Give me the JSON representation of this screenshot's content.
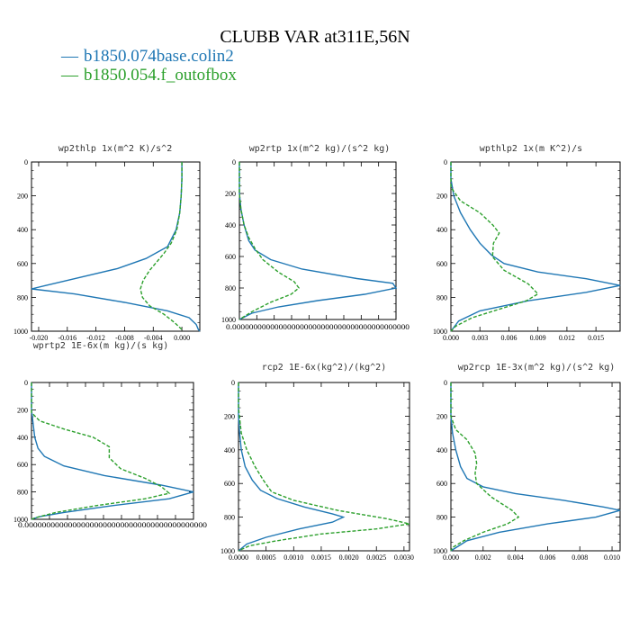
{
  "title": "CLUBB VAR at311E,56N",
  "legend": [
    {
      "label": "b1850.074base.colin2",
      "color": "#1f77b4",
      "dash": "solid"
    },
    {
      "label": "b1850.054.f_outofbox",
      "color": "#2ca02c",
      "dash": "dashed"
    }
  ],
  "chart_data": [
    {
      "type": "line",
      "title": "wp2thlp  1x(m^2 K)/s^2",
      "xlim": [
        -0.021,
        0.0025
      ],
      "ylim": [
        1000,
        0
      ],
      "y_inverted": true,
      "xticks": [
        "-0.020",
        "-0.016",
        "-0.012",
        "-0.008",
        "-0.004",
        "0.000"
      ],
      "xtick_values": [
        -0.02,
        -0.016,
        -0.012,
        -0.008,
        -0.004,
        0.0
      ],
      "yticks": [
        "0",
        "200",
        "400",
        "600",
        "800",
        "1000"
      ],
      "series": [
        {
          "name": "b1850.074base.colin2",
          "points": [
            [
              0.0,
              0
            ],
            [
              0.0,
              100
            ],
            [
              -0.0001,
              200
            ],
            [
              -0.0003,
              300
            ],
            [
              -0.0008,
              400
            ],
            [
              -0.002,
              500
            ],
            [
              -0.005,
              570
            ],
            [
              -0.009,
              630
            ],
            [
              -0.015,
              690
            ],
            [
              -0.019,
              730
            ],
            [
              -0.021,
              750
            ],
            [
              -0.015,
              780
            ],
            [
              -0.008,
              830
            ],
            [
              -0.002,
              880
            ],
            [
              0.001,
              920
            ],
            [
              0.002,
              960
            ],
            [
              0.0023,
              990
            ],
            [
              0.0025,
              1000
            ]
          ]
        },
        {
          "name": "b1850.054.f_outofbox",
          "points": [
            [
              0.0,
              0
            ],
            [
              0.0,
              100
            ],
            [
              -0.0001,
              200
            ],
            [
              -0.0003,
              300
            ],
            [
              -0.0007,
              400
            ],
            [
              -0.0015,
              480
            ],
            [
              -0.0025,
              540
            ],
            [
              -0.0035,
              590
            ],
            [
              -0.0045,
              640
            ],
            [
              -0.0054,
              700
            ],
            [
              -0.0058,
              750
            ],
            [
              -0.0055,
              800
            ],
            [
              -0.0045,
              850
            ],
            [
              -0.0025,
              900
            ],
            [
              -0.001,
              950
            ],
            [
              0.0,
              990
            ],
            [
              0.0,
              1000
            ]
          ]
        }
      ]
    },
    {
      "type": "line",
      "title": "wp2rtp  1x(m^2 kg)/(s^2 kg)",
      "xlim": [
        0,
        1
      ],
      "ylim": [
        1000,
        0
      ],
      "y_inverted": true,
      "xticks": [],
      "xtick_values": [],
      "xtick_overlap_text": "0.000000000000000000000000000000000000000000",
      "yticks": [
        "0",
        "200",
        "400",
        "600",
        "800",
        "1000"
      ],
      "series": [
        {
          "name": "b1850.074base.colin2",
          "points": [
            [
              0.0,
              0
            ],
            [
              0.0,
              200
            ],
            [
              0.01,
              300
            ],
            [
              0.03,
              400
            ],
            [
              0.06,
              500
            ],
            [
              0.1,
              560
            ],
            [
              0.2,
              620
            ],
            [
              0.4,
              680
            ],
            [
              0.75,
              740
            ],
            [
              0.98,
              770
            ],
            [
              1.0,
              800
            ],
            [
              0.8,
              840
            ],
            [
              0.5,
              880
            ],
            [
              0.25,
              920
            ],
            [
              0.08,
              960
            ],
            [
              0.0,
              1000
            ]
          ]
        },
        {
          "name": "b1850.054.f_outofbox",
          "points": [
            [
              0.0,
              0
            ],
            [
              0.0,
              200
            ],
            [
              0.01,
              300
            ],
            [
              0.03,
              400
            ],
            [
              0.06,
              480
            ],
            [
              0.1,
              550
            ],
            [
              0.15,
              620
            ],
            [
              0.25,
              700
            ],
            [
              0.35,
              760
            ],
            [
              0.38,
              800
            ],
            [
              0.33,
              840
            ],
            [
              0.2,
              890
            ],
            [
              0.08,
              950
            ],
            [
              0.0,
              1000
            ]
          ]
        }
      ]
    },
    {
      "type": "line",
      "title": "wpthlp2  1x(m K^2)/s",
      "xlim": [
        0,
        0.0175
      ],
      "ylim": [
        1000,
        0
      ],
      "y_inverted": true,
      "xticks": [
        "0.000",
        "0.003",
        "0.006",
        "0.009",
        "0.012",
        "0.015"
      ],
      "xtick_values": [
        0.0,
        0.003,
        0.006,
        0.009,
        0.012,
        0.015
      ],
      "yticks": [
        "0",
        "200",
        "400",
        "600",
        "800",
        "1000"
      ],
      "series": [
        {
          "name": "b1850.074base.colin2",
          "points": [
            [
              0.0,
              0
            ],
            [
              0.0,
              100
            ],
            [
              0.0003,
              200
            ],
            [
              0.001,
              300
            ],
            [
              0.002,
              400
            ],
            [
              0.003,
              480
            ],
            [
              0.0042,
              550
            ],
            [
              0.0055,
              600
            ],
            [
              0.009,
              650
            ],
            [
              0.014,
              690
            ],
            [
              0.0175,
              730
            ],
            [
              0.014,
              770
            ],
            [
              0.008,
              820
            ],
            [
              0.003,
              880
            ],
            [
              0.0008,
              940
            ],
            [
              0.0,
              1000
            ]
          ]
        },
        {
          "name": "b1850.054.f_outofbox",
          "points": [
            [
              0.0,
              0
            ],
            [
              0.0,
              150
            ],
            [
              0.001,
              230
            ],
            [
              0.003,
              300
            ],
            [
              0.0043,
              370
            ],
            [
              0.005,
              420
            ],
            [
              0.0044,
              480
            ],
            [
              0.0043,
              560
            ],
            [
              0.0055,
              640
            ],
            [
              0.008,
              720
            ],
            [
              0.009,
              780
            ],
            [
              0.0078,
              820
            ],
            [
              0.005,
              870
            ],
            [
              0.0022,
              920
            ],
            [
              0.0005,
              970
            ],
            [
              0.0,
              1000
            ]
          ]
        }
      ]
    },
    {
      "type": "line",
      "title": "wprtp2  1E-6x(m kg)/(s kg)",
      "xlim": [
        0,
        1
      ],
      "ylim": [
        1000,
        0
      ],
      "y_inverted": true,
      "xticks": [],
      "xtick_values": [],
      "xtick_overlap_text": "0.000000000000000000000000000000000000000000",
      "yticks": [
        "0",
        "200",
        "400",
        "600",
        "800",
        "1000"
      ],
      "series": [
        {
          "name": "b1850.074base.colin2",
          "points": [
            [
              0.0,
              0
            ],
            [
              0.0,
              200
            ],
            [
              0.01,
              300
            ],
            [
              0.02,
              400
            ],
            [
              0.04,
              480
            ],
            [
              0.08,
              540
            ],
            [
              0.2,
              610
            ],
            [
              0.45,
              680
            ],
            [
              0.8,
              750
            ],
            [
              1.0,
              800
            ],
            [
              0.85,
              850
            ],
            [
              0.5,
              900
            ],
            [
              0.2,
              950
            ],
            [
              0.05,
              980
            ],
            [
              0.0,
              1000
            ]
          ]
        },
        {
          "name": "b1850.054.f_outofbox",
          "points": [
            [
              0.0,
              0
            ],
            [
              0.0,
              220
            ],
            [
              0.05,
              280
            ],
            [
              0.2,
              340
            ],
            [
              0.38,
              400
            ],
            [
              0.48,
              470
            ],
            [
              0.48,
              550
            ],
            [
              0.55,
              630
            ],
            [
              0.7,
              700
            ],
            [
              0.8,
              760
            ],
            [
              0.85,
              810
            ],
            [
              0.7,
              850
            ],
            [
              0.4,
              900
            ],
            [
              0.15,
              950
            ],
            [
              0.02,
              990
            ],
            [
              0.0,
              1000
            ]
          ]
        }
      ]
    },
    {
      "type": "line",
      "title": "rcp2  1E-6x(kg^2)/(kg^2)",
      "xlim": [
        0,
        0.0031
      ],
      "ylim": [
        1000,
        0
      ],
      "y_inverted": true,
      "xticks": [
        "0.0000",
        "0.0005",
        "0.0010",
        "0.0015",
        "0.0020",
        "0.0025",
        "0.0030"
      ],
      "xtick_values": [
        0.0,
        0.0005,
        0.001,
        0.0015,
        0.002,
        0.0025,
        0.003
      ],
      "yticks": [
        "0",
        "200",
        "400",
        "600",
        "800",
        "1000"
      ],
      "series": [
        {
          "name": "b1850.074base.colin2",
          "points": [
            [
              0.0,
              0
            ],
            [
              0.0,
              200
            ],
            [
              2e-05,
              300
            ],
            [
              5e-05,
              400
            ],
            [
              0.00012,
              500
            ],
            [
              0.00025,
              580
            ],
            [
              0.0004,
              640
            ],
            [
              0.0007,
              690
            ],
            [
              0.0012,
              740
            ],
            [
              0.0017,
              780
            ],
            [
              0.0019,
              800
            ],
            [
              0.0017,
              830
            ],
            [
              0.0011,
              870
            ],
            [
              0.0005,
              920
            ],
            [
              0.00015,
              960
            ],
            [
              0.0,
              1000
            ]
          ]
        },
        {
          "name": "b1850.054.f_outofbox",
          "points": [
            [
              0.0,
              0
            ],
            [
              0.0,
              150
            ],
            [
              5e-05,
              300
            ],
            [
              0.00015,
              400
            ],
            [
              0.0003,
              500
            ],
            [
              0.00045,
              580
            ],
            [
              0.0006,
              650
            ],
            [
              0.001,
              700
            ],
            [
              0.0018,
              760
            ],
            [
              0.0027,
              810
            ],
            [
              0.0031,
              840
            ],
            [
              0.0025,
              870
            ],
            [
              0.0015,
              900
            ],
            [
              0.0007,
              940
            ],
            [
              0.0002,
              970
            ],
            [
              0.0,
              1000
            ]
          ]
        }
      ]
    },
    {
      "type": "line",
      "title": "wp2rcp  1E-3x(m^2 kg)/(s^2 kg)",
      "xlim": [
        0,
        0.0105
      ],
      "ylim": [
        1000,
        0
      ],
      "y_inverted": true,
      "xticks": [
        "0.000",
        "0.002",
        "0.004",
        "0.006",
        "0.008",
        "0.010"
      ],
      "xtick_values": [
        0.0,
        0.002,
        0.004,
        0.006,
        0.008,
        0.01
      ],
      "yticks": [
        "0",
        "200",
        "400",
        "600",
        "800",
        "1000"
      ],
      "series": [
        {
          "name": "b1850.074base.colin2",
          "points": [
            [
              0.0,
              0
            ],
            [
              0.0,
              200
            ],
            [
              0.0001,
              300
            ],
            [
              0.0003,
              400
            ],
            [
              0.0006,
              500
            ],
            [
              0.001,
              570
            ],
            [
              0.002,
              620
            ],
            [
              0.004,
              660
            ],
            [
              0.007,
              700
            ],
            [
              0.0095,
              740
            ],
            [
              0.0105,
              760
            ],
            [
              0.009,
              800
            ],
            [
              0.006,
              840
            ],
            [
              0.003,
              890
            ],
            [
              0.001,
              940
            ],
            [
              0.0,
              1000
            ]
          ]
        },
        {
          "name": "b1850.054.f_outofbox",
          "points": [
            [
              0.0,
              0
            ],
            [
              0.0,
              200
            ],
            [
              0.0003,
              280
            ],
            [
              0.001,
              340
            ],
            [
              0.0015,
              420
            ],
            [
              0.0016,
              480
            ],
            [
              0.0015,
              540
            ],
            [
              0.0016,
              600
            ],
            [
              0.0025,
              680
            ],
            [
              0.0038,
              760
            ],
            [
              0.0042,
              800
            ],
            [
              0.0035,
              840
            ],
            [
              0.002,
              890
            ],
            [
              0.0008,
              940
            ],
            [
              0.0001,
              980
            ],
            [
              0.0,
              1000
            ]
          ]
        }
      ]
    }
  ]
}
